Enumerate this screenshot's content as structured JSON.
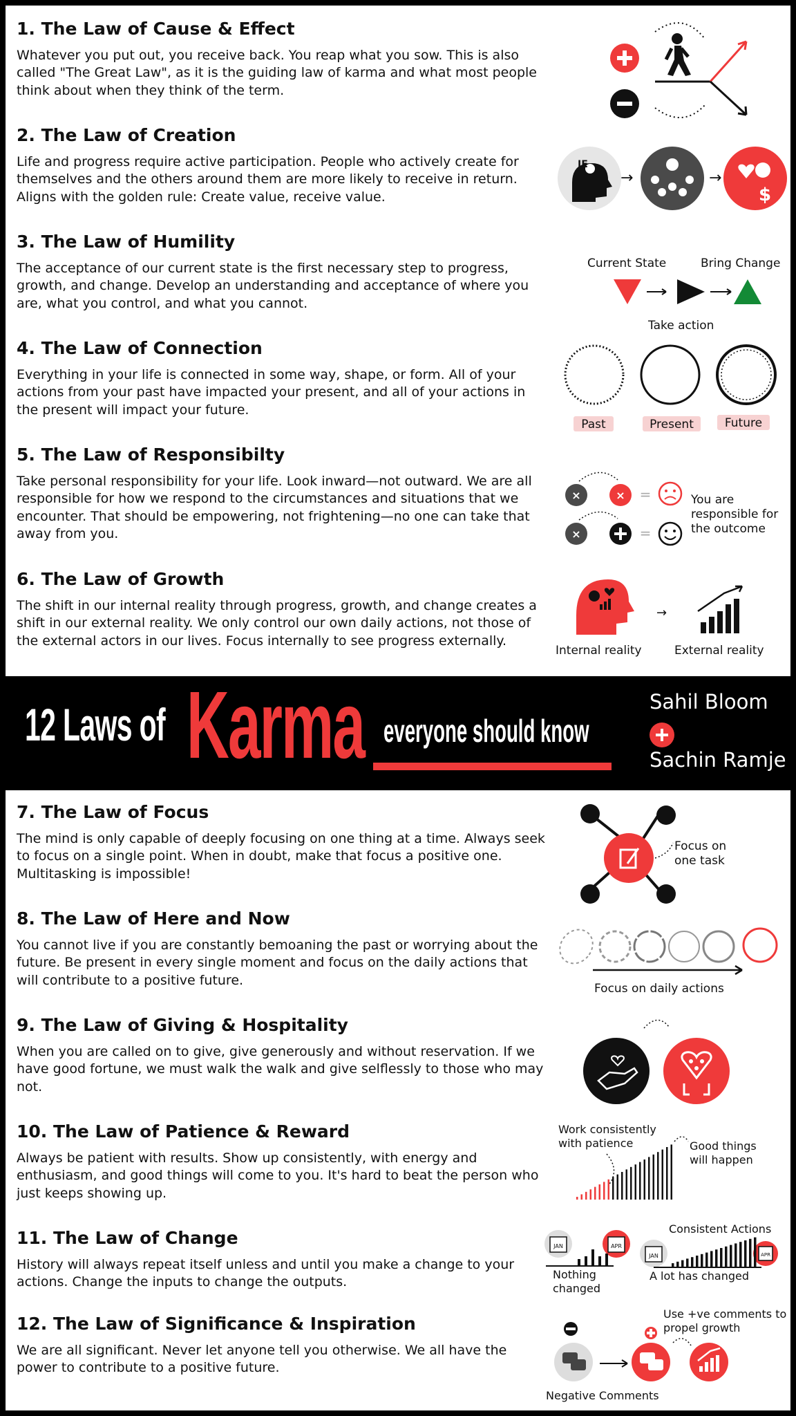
{
  "banner": {
    "number_text": "12 Laws of",
    "karma_text": "Karma",
    "tagline": "everyone should know",
    "author_1": "Sahil Bloom",
    "author_2": "Sachin Ramje",
    "accent_color": "#ef3a3a"
  },
  "laws": [
    {
      "title": "1. The Law of Cause & Effect",
      "body": "Whatever you put out, you receive back. You reap what you sow. This is also called \"The Great Law\", as it is the guiding law of karma and what most people think about when they think of the term."
    },
    {
      "title": "2. The Law of Creation",
      "body": "Life and progress require active participation. People who actively create for themselves and the others around them are more likely to receive in return. Aligns with the golden rule: Create value, receive value."
    },
    {
      "title": "3. The Law of Humility",
      "body": "The acceptance of our current state is the first necessary step to progress, growth, and change. Develop an understanding and acceptance of where you are, what you control, and what you cannot."
    },
    {
      "title": "4. The Law of Connection",
      "body": "Everything in your life is connected in some way, shape, or form. All of your actions from your past have impacted your present, and all of your actions in the present will impact your future."
    },
    {
      "title": "5. The Law of Responsibilty",
      "body": "Take personal responsibility for your life. Look inward—not outward. We are all responsible for how we respond to the circumstances and situations that we encounter. That should be empowering, not frightening—no one can take that away from you."
    },
    {
      "title": "6. The Law of Growth",
      "body": "The shift in our internal reality through progress, growth, and change creates a shift in our external reality. We only control our own daily actions, not those of the external actors in our lives. Focus internally to see progress externally."
    },
    {
      "title": "7. The Law of Focus",
      "body": "The mind is only capable of deeply focusing on one thing at a time. Always seek to focus on a single point. When in doubt, make that focus a positive one. Multitasking is impossible!"
    },
    {
      "title": "8. The Law of Here and Now",
      "body": "You cannot live if you are constantly bemoaning the past or worrying about the future. Be present in every single moment and focus on the daily actions that will contribute to a positive future."
    },
    {
      "title": "9. The Law of Giving & Hospitality",
      "body": "When you are called on to give, give generously and without reservation. If we have good fortune, we must walk the walk and give selflessly to those who may not."
    },
    {
      "title": "10. The Law of Patience & Reward",
      "body": "Always be patient with results. Show up consistently, with energy and enthusiasm, and good things will come to you. It's hard to beat the person who just keeps showing up."
    },
    {
      "title": "11. The Law of Change",
      "body": "History will always repeat itself unless and until you make a change to your actions. Change the inputs to change the outputs."
    },
    {
      "title": "12. The Law of Significance & Inspiration",
      "body": "We are all significant. Never let anyone tell you otherwise. We all have the power to contribute to a positive future."
    }
  ],
  "illustrations": {
    "humility": {
      "current_state": "Current State",
      "bring_change": "Bring Change",
      "take_action": "Take action"
    },
    "connection": {
      "past": "Past",
      "present": "Present",
      "future": "Future"
    },
    "responsibility": {
      "note_1": "You are",
      "note_2": "responsible for",
      "note_3": "the outcome"
    },
    "growth": {
      "internal": "Internal reality",
      "external": "External reality"
    },
    "focus": {
      "note_1": "Focus on",
      "note_2": "one task"
    },
    "here_now": {
      "caption": "Focus on daily actions"
    },
    "patience": {
      "left_1": "Work consistently",
      "left_2": "with patience",
      "right_1": "Good things",
      "right_2": "will happen"
    },
    "change": {
      "top": "Consistent Actions",
      "nothing_1": "Nothing",
      "nothing_2": "changed",
      "lot": "A lot has changed",
      "jan": "JAN",
      "apr": "APR"
    },
    "significance": {
      "top_1": "Use +ve comments to",
      "top_2": "propel growth",
      "negative": "Negative Comments"
    }
  }
}
